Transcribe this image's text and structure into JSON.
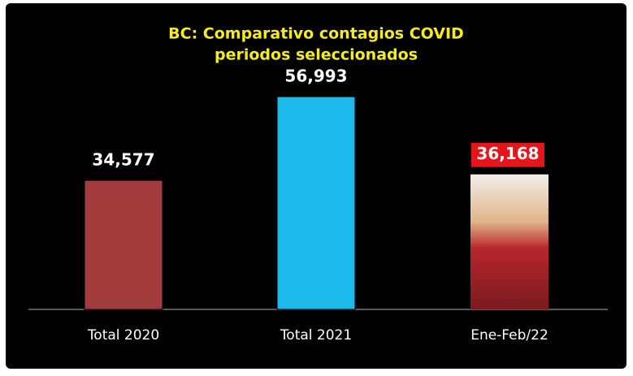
{
  "chart_data": {
    "type": "bar",
    "title": "BC: Comparativo contagios COVID",
    "subtitle": "periodos seleccionados",
    "categories": [
      "Total 2020",
      "Total 2021",
      "Ene-Feb/22"
    ],
    "values": [
      34577,
      56993,
      36168
    ],
    "value_labels": [
      "34,577",
      "56,993",
      "36,168"
    ],
    "colors": [
      "#a23b3b",
      "#1cb9ea",
      "#b8262c"
    ]
  }
}
